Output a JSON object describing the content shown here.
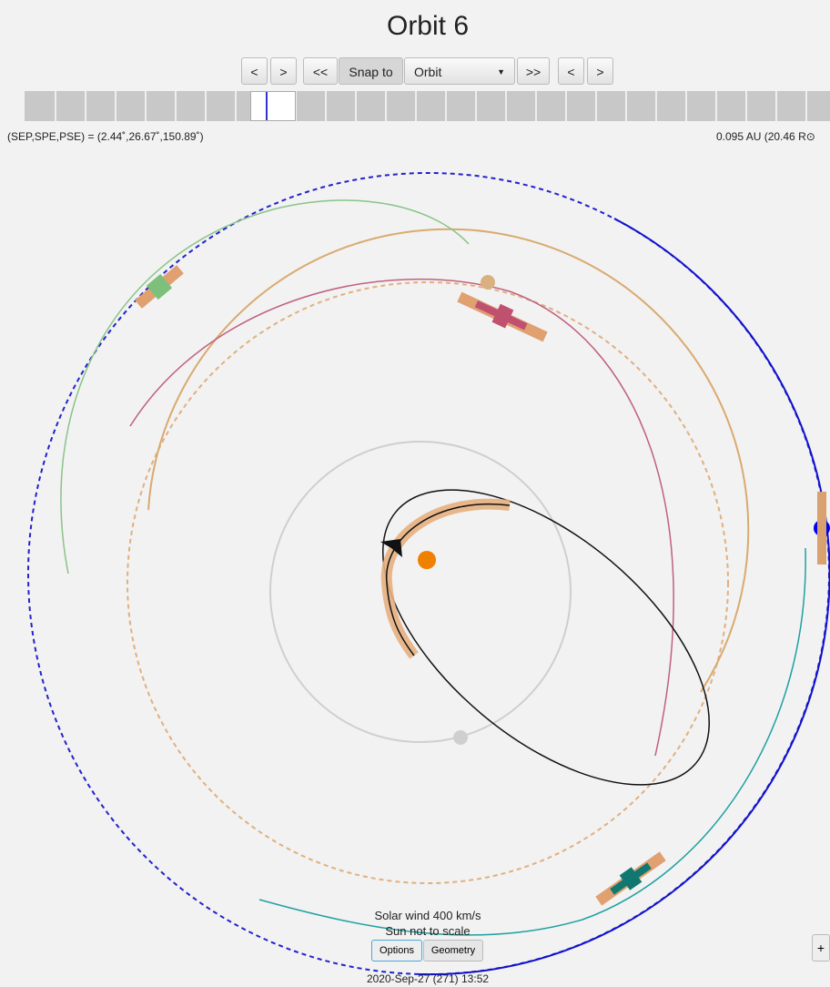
{
  "header": {
    "title": "Orbit 6"
  },
  "toolbar": {
    "buttons": [
      "<",
      ">",
      "<<",
      "Snap to",
      ">>",
      "<",
      ">"
    ],
    "select": "Orbit"
  },
  "readout": {
    "angles": "(SEP,SPE,PSE) = (2.44˚,26.67˚,150.89˚)",
    "distance": "0.095 AU (20.46 R⊙"
  },
  "footer": {
    "solar_wind": "Solar wind 400 km/s",
    "scale_note": "Sun not to scale",
    "tabs": [
      "Options",
      "Geometry"
    ],
    "date": "2020-Sep-27 (271) 13:52",
    "zoom": "+"
  }
}
